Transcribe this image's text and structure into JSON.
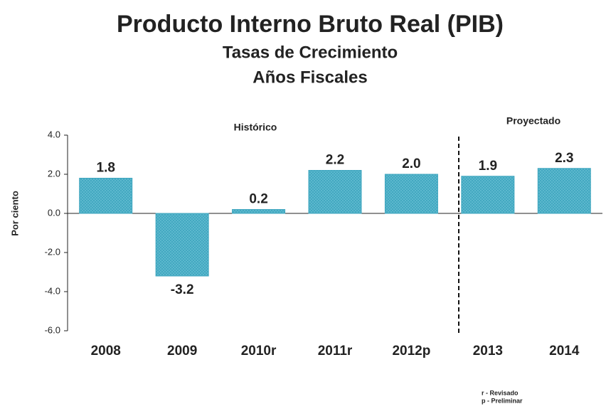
{
  "chart_data": {
    "type": "bar",
    "title": "Producto Interno Bruto Real (PIB)",
    "subtitle": [
      "Tasas de Crecimiento",
      "Años Fiscales"
    ],
    "y_label": "Por ciento",
    "annotations": [
      "Histórico",
      "Proyectado"
    ],
    "footnotes": [
      "r -  Revisado",
      "p - Preliminar"
    ],
    "categories": [
      "2008",
      "2009",
      "2010r",
      "2011r",
      "2012p",
      "2013",
      "2014"
    ],
    "values": [
      1.8,
      -3.2,
      0.2,
      2.2,
      2.0,
      1.9,
      2.3
    ],
    "value_labels": [
      "1.8",
      "-3.2",
      "0.2",
      "2.2",
      "2.0",
      "1.9",
      "2.3"
    ],
    "color": "#3fa6bf",
    "ylim": [
      -6,
      4
    ],
    "yticks": [
      {
        "value": 4,
        "label": "4.0"
      },
      {
        "value": 2,
        "label": "2.0"
      },
      {
        "value": 0,
        "label": "0.0"
      },
      {
        "value": -2,
        "label": "-2.0"
      },
      {
        "value": -4,
        "label": "-4.0"
      },
      {
        "value": -6,
        "label": "-6.0"
      }
    ],
    "grid": false
  }
}
